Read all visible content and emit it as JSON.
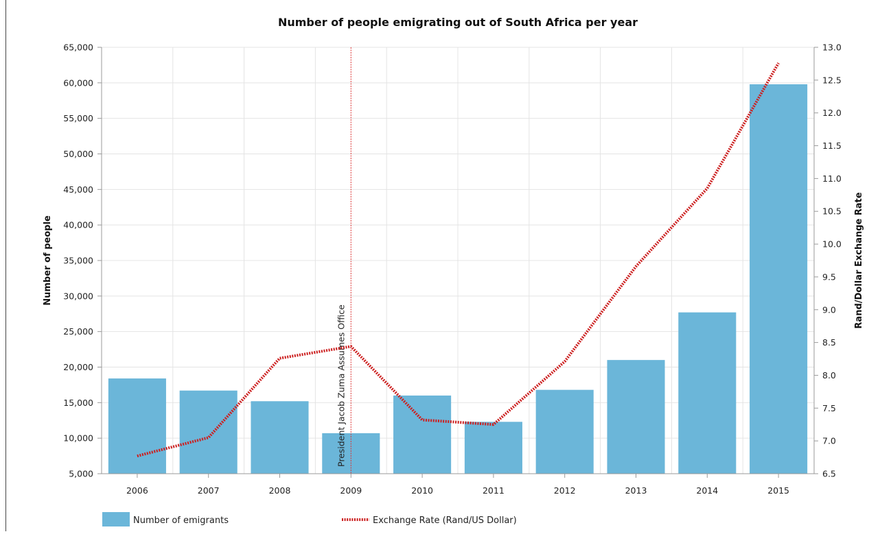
{
  "chart_data": {
    "type": "bar",
    "title": "Number of people emigrating out of South Africa per year",
    "categories": [
      "2006",
      "2007",
      "2008",
      "2009",
      "2010",
      "2011",
      "2012",
      "2013",
      "2014",
      "2015"
    ],
    "series": [
      {
        "name": "Number of emigrants",
        "type": "bar",
        "axis": "left",
        "color": "#6bb6d9",
        "values": [
          18400,
          16700,
          15200,
          10700,
          16000,
          12300,
          16800,
          21000,
          27700,
          59800
        ]
      },
      {
        "name": "Exchange Rate (Rand/US Dollar)",
        "type": "line",
        "axis": "right",
        "style": "dotted",
        "color": "#cc1f1f",
        "values": [
          6.77,
          7.05,
          8.26,
          8.44,
          7.32,
          7.25,
          8.21,
          9.66,
          10.85,
          12.76
        ]
      }
    ],
    "ylabel": "Number of people",
    "ylim": [
      5000,
      65000
    ],
    "yticks": [
      "5,000",
      "10,000",
      "15,000",
      "20,000",
      "25,000",
      "30,000",
      "35,000",
      "40,000",
      "45,000",
      "50,000",
      "55,000",
      "60,000",
      "65,000"
    ],
    "y2label": "Rand/Dollar Exchange Rate",
    "y2lim": [
      6.5,
      13.0
    ],
    "y2ticks": [
      "6.5",
      "7.0",
      "7.5",
      "8.0",
      "8.5",
      "9.0",
      "9.5",
      "10.0",
      "10.5",
      "11.0",
      "11.5",
      "12.0",
      "12.5",
      "13.0"
    ],
    "annotation": {
      "category": "2009",
      "text": "President Jacob Zuma Assumes Office",
      "color": "#d33"
    },
    "grid": true,
    "legend_position": "bottom-left"
  }
}
